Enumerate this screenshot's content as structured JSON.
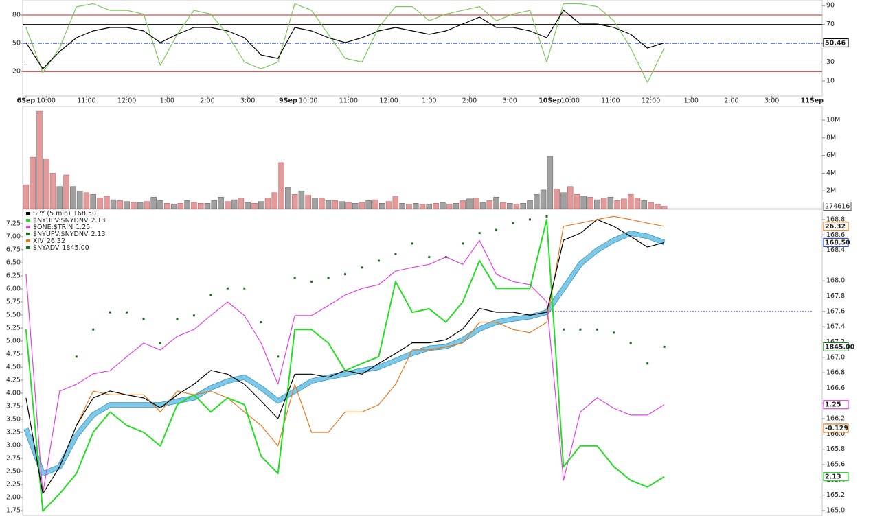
{
  "chart_data": [
    {
      "type": "line",
      "x": [
        0,
        5,
        10,
        15,
        20,
        25,
        30,
        35,
        40,
        45,
        50,
        55,
        60,
        65,
        70,
        75,
        80,
        85,
        90,
        95,
        100,
        105,
        110,
        115,
        120,
        125,
        130,
        135,
        140,
        145,
        150,
        155,
        160,
        165,
        170,
        175,
        180,
        185,
        190
      ],
      "xlim": [
        -1,
        237
      ],
      "xticks": [
        {
          "value": 0,
          "label": "6Sep"
        },
        {
          "value": 6,
          "label": "10:00"
        },
        {
          "value": 18,
          "label": "11:00"
        },
        {
          "value": 30,
          "label": "12:00"
        },
        {
          "value": 42,
          "label": "1:00"
        },
        {
          "value": 54,
          "label": "2:00"
        },
        {
          "value": 66,
          "label": "3:00"
        },
        {
          "value": 78,
          "label": "9Sep"
        },
        {
          "value": 84,
          "label": "10:00"
        },
        {
          "value": 96,
          "label": "11:00"
        },
        {
          "value": 108,
          "label": "12:00"
        },
        {
          "value": 120,
          "label": "1:00"
        },
        {
          "value": 132,
          "label": "2:00"
        },
        {
          "value": 144,
          "label": "3:00"
        },
        {
          "value": 156,
          "label": "10Sep"
        },
        {
          "value": 162,
          "label": "10:00"
        },
        {
          "value": 174,
          "label": "11:00"
        },
        {
          "value": 186,
          "label": "12:00"
        },
        {
          "value": 198,
          "label": "1:00"
        },
        {
          "value": 210,
          "label": "2:00"
        },
        {
          "value": 222,
          "label": "3:00"
        },
        {
          "value": 234,
          "label": "11Sep"
        }
      ],
      "ylim": [
        -6.1,
        96
      ],
      "yticks": [
        20,
        50,
        80
      ],
      "y2lim": [
        -6.1,
        96
      ],
      "y2ticks": [
        10,
        30,
        50,
        70,
        90
      ],
      "levels": [
        {
          "value": 80,
          "color": "#d02020"
        },
        {
          "value": 70,
          "color": "#000000"
        },
        {
          "value": 50,
          "color": "#2040c0",
          "dash": true
        },
        {
          "value": 30,
          "color": "#000000"
        },
        {
          "value": 20,
          "color": "#d02020"
        }
      ],
      "series": [
        {
          "color": "#7cc85a",
          "values": [
            66.8,
            19,
            45,
            88.8,
            92,
            85,
            85,
            81,
            26.6,
            59.5,
            85,
            81,
            59.5,
            30,
            23,
            30,
            92,
            85,
            59.5,
            34,
            30,
            67,
            89,
            89,
            74,
            81,
            85,
            89,
            74,
            81,
            85,
            30,
            92,
            92,
            89,
            74,
            45,
            8.3,
            45
          ]
        },
        {
          "color": "#000000",
          "last": 50.46,
          "values": [
            50.7,
            22.9,
            41.2,
            55.9,
            63.2,
            66.8,
            66.8,
            63.2,
            50.7,
            59.5,
            66.8,
            66.8,
            63.2,
            55.9,
            37.6,
            33.9,
            66.8,
            63.2,
            55.9,
            50.7,
            55.9,
            63.2,
            66.8,
            63.2,
            59.5,
            63.2,
            70.5,
            77.8,
            66.8,
            66.8,
            63.2,
            55.9,
            85.1,
            70.5,
            70.5,
            66.8,
            59.5,
            44.9,
            50.46
          ]
        }
      ]
    },
    {
      "type": "bar",
      "ylim": [
        0,
        11550000
      ],
      "yaxis_side": "right",
      "yticks": [
        {
          "value": 2000000,
          "label": "2M"
        },
        {
          "value": 4000000,
          "label": "4M"
        },
        {
          "value": 6000000,
          "label": "6M"
        },
        {
          "value": 8000000,
          "label": "8M"
        },
        {
          "value": 10000000,
          "label": "10M"
        }
      ],
      "series": [
        {
          "color": "#e39a9a",
          "stroke": "#b05a5a",
          "show_last": true,
          "x": [
            0,
            2,
            4,
            6,
            8,
            12,
            18,
            22,
            24,
            28,
            32,
            36,
            42,
            46,
            50,
            52,
            60,
            64,
            68,
            72,
            74,
            76,
            80,
            84,
            88,
            92,
            96,
            100,
            104,
            108,
            110,
            114,
            118,
            122,
            126,
            130,
            134,
            138,
            142,
            146,
            158,
            162,
            164,
            168,
            172,
            176,
            178,
            180,
            182,
            186,
            188,
            190
          ],
          "values": [
            2700000,
            5800000,
            11000000,
            5600000,
            4000000,
            3800000,
            1800000,
            1200000,
            1400000,
            900000,
            700000,
            800000,
            600000,
            600000,
            700000,
            600000,
            800000,
            1200000,
            600000,
            1200000,
            1800000,
            5200000,
            1600000,
            1500000,
            1200000,
            900000,
            700000,
            700000,
            1000000,
            800000,
            1400000,
            500000,
            500000,
            600000,
            500000,
            900000,
            1200000,
            900000,
            700000,
            500000,
            2200000,
            2500000,
            1600000,
            1300000,
            1200000,
            900000,
            1100000,
            1600000,
            1200000,
            700000,
            500000,
            274616
          ]
        },
        {
          "color": "#a0a0a0",
          "stroke": "#606060",
          "x": [
            10,
            14,
            16,
            20,
            26,
            30,
            34,
            38,
            40,
            44,
            48,
            54,
            56,
            58,
            62,
            66,
            70,
            78,
            82,
            86,
            90,
            94,
            98,
            102,
            106,
            112,
            116,
            120,
            124,
            128,
            132,
            136,
            140,
            144,
            148,
            150,
            152,
            154,
            156,
            160,
            166,
            170,
            174,
            184
          ],
          "values": [
            2500000,
            2500000,
            2000000,
            1600000,
            1000000,
            800000,
            700000,
            1300000,
            900000,
            500000,
            900000,
            600000,
            900000,
            1300000,
            1000000,
            700000,
            800000,
            2400000,
            2000000,
            1200000,
            900000,
            800000,
            600000,
            900000,
            600000,
            600000,
            600000,
            500000,
            700000,
            600000,
            1100000,
            700000,
            1300000,
            600000,
            600000,
            900000,
            1600000,
            2100000,
            5900000,
            1800000,
            1400000,
            1000000,
            1300000,
            900000
          ]
        }
      ]
    },
    {
      "type": "line",
      "x": [
        0,
        5,
        10,
        15,
        20,
        25,
        30,
        35,
        40,
        45,
        50,
        55,
        60,
        65,
        70,
        75,
        80,
        85,
        90,
        95,
        100,
        105,
        110,
        115,
        120,
        125,
        130,
        135,
        140,
        145,
        150,
        155,
        160,
        165,
        170,
        175,
        180,
        185,
        190
      ],
      "ylim": [
        1.645,
        7.526
      ],
      "yticks": [
        1.75,
        {
          "value": 2,
          "label": "2.00"
        },
        2.25,
        {
          "value": 2.5,
          "label": "2.50"
        },
        2.75,
        {
          "value": 3,
          "label": "3.00"
        },
        3.25,
        {
          "value": 3.5,
          "label": "3.50"
        },
        3.75,
        {
          "value": 4,
          "label": "4.00"
        },
        4.25,
        {
          "value": 4.5,
          "label": "4.50"
        },
        4.75,
        {
          "value": 5,
          "label": "5.00"
        },
        5.25,
        {
          "value": 5.5,
          "label": "5.50"
        },
        5.75,
        {
          "value": 6,
          "label": "6.00"
        },
        6.25,
        {
          "value": 6.5,
          "label": "6.50"
        },
        6.75,
        {
          "value": 7,
          "label": "7.00"
        },
        7.25
      ],
      "y2lim": [
        164.928,
        168.934
      ],
      "y2ticks": [
        {
          "value": 165,
          "label": "165.0"
        },
        165.2,
        165.4,
        165.6,
        165.8,
        {
          "value": 166,
          "label": "166.0"
        },
        166.2,
        166.4,
        166.6,
        166.8,
        {
          "value": 167,
          "label": "167.0"
        },
        167.2,
        167.4,
        167.6,
        167.8,
        {
          "value": 168,
          "label": "168.0"
        },
        168.4,
        168.6,
        168.8
      ],
      "reference_line": {
        "value": 167.6,
        "x": [
          155,
          234
        ],
        "color": "#2040c0"
      },
      "series": [
        {
          "name": "SPY (5 min)",
          "axis": "y2",
          "color": "#000000",
          "box_color": "#3050c0",
          "last": 168.5,
          "last_label": "168.50",
          "values": [
            166.47,
            165.22,
            165.57,
            166.11,
            166.47,
            166.56,
            166.51,
            166.47,
            166.34,
            166.51,
            166.65,
            166.83,
            166.78,
            166.65,
            166.43,
            166.2,
            166.78,
            166.78,
            166.74,
            166.83,
            166.78,
            166.92,
            167.05,
            167.19,
            167.19,
            167.23,
            167.37,
            167.64,
            167.59,
            167.59,
            167.55,
            167.59,
            168.53,
            168.62,
            168.8,
            168.71,
            168.58,
            168.44,
            168.5
          ]
        },
        {
          "name": "$NYUPV:$NYDNV",
          "color": "#22dd22",
          "last": 2.13,
          "width": 2,
          "values": [
            5.22,
            1.74,
            2.07,
            2.46,
            3.25,
            3.64,
            3.38,
            3.25,
            2.99,
            3.78,
            3.97,
            3.64,
            3.91,
            3.78,
            2.79,
            2.46,
            5.22,
            5.22,
            4.96,
            4.43,
            4.57,
            4.7,
            6.14,
            5.55,
            5.62,
            5.36,
            5.75,
            6.54,
            6.01,
            6.01,
            6.01,
            7.33,
            2.59,
            2.99,
            2.99,
            2.59,
            2.33,
            2.2,
            2.4
          ]
        },
        {
          "name": "$ONE:$TRIN",
          "color": "#e040e0",
          "last": 1.25,
          "values": [
            6.28,
            2.07,
            4.04,
            4.17,
            4.37,
            4.43,
            4.7,
            4.96,
            4.83,
            5.09,
            5.22,
            5.49,
            5.75,
            5.49,
            4.96,
            4.17,
            5.49,
            5.49,
            5.68,
            5.88,
            6.01,
            6.08,
            6.34,
            6.41,
            6.47,
            6.61,
            6.47,
            6.93,
            6.28,
            6.14,
            6.08,
            5.75,
            2.33,
            3.64,
            3.91,
            3.71,
            3.58,
            3.58,
            3.78
          ]
        },
        {
          "name": "$NYUPV:$NYDNV",
          "color": "#1a6e1a",
          "last": 2.13
        },
        {
          "name": "XIV",
          "color": "#e07a20",
          "last": 26.32,
          "values": [
            null,
            null,
            null,
            3.38,
            4.04,
            3.97,
            3.97,
            3.97,
            3.64,
            4.04,
            3.97,
            4.04,
            3.91,
            3.64,
            3.38,
            2.99,
            4.17,
            3.25,
            3.25,
            3.64,
            3.64,
            3.78,
            4.17,
            4.83,
            4.83,
            4.89,
            4.96,
            5.36,
            5.36,
            5.22,
            5.16,
            5.36,
            7.2,
            7.26,
            7.33,
            7.39,
            7.33,
            7.26,
            7.2
          ]
        },
        {
          "name": "$NYADV",
          "color": "#1a6e1a",
          "style": "dots",
          "last": 1845,
          "last_label": "1845.00",
          "values": [
            null,
            null,
            null,
            4.7,
            5.22,
            5.55,
            5.55,
            5.42,
            4.96,
            5.42,
            5.49,
            5.88,
            6.01,
            6.01,
            5.36,
            4.7,
            6.21,
            6.14,
            6.21,
            6.28,
            6.41,
            6.54,
            6.67,
            6.87,
            6.61,
            6.61,
            6.87,
            7.07,
            7.13,
            7.26,
            7.33,
            7.39,
            5.22,
            5.22,
            5.22,
            5.16,
            4.96,
            4.57,
            4.89
          ]
        },
        {
          "axis": "y2",
          "color": "#7cc8e8",
          "edge": "#3a8fb7",
          "width": 6,
          "values": [
            166.07,
            165.48,
            165.57,
            165.98,
            166.25,
            166.38,
            166.38,
            166.38,
            166.38,
            166.43,
            166.47,
            166.6,
            166.69,
            166.74,
            166.6,
            166.43,
            166.56,
            166.69,
            166.74,
            166.78,
            166.83,
            166.87,
            166.96,
            167.05,
            167.12,
            167.14,
            167.23,
            167.37,
            167.46,
            167.5,
            167.53,
            167.59,
            167.9,
            168.22,
            168.4,
            168.53,
            168.62,
            168.58,
            168.5
          ]
        },
        {
          "color": "#e07a20",
          "x": [
            190
          ],
          "values": [
            3.33
          ],
          "last": -0.129
        }
      ]
    }
  ]
}
